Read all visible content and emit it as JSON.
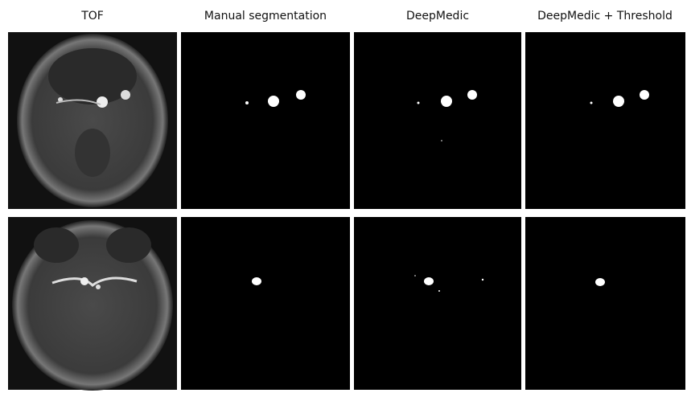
{
  "columns": [
    "TOF",
    "Manual segmentation",
    "DeepMedic",
    "DeepMedic + Threshold"
  ]
}
